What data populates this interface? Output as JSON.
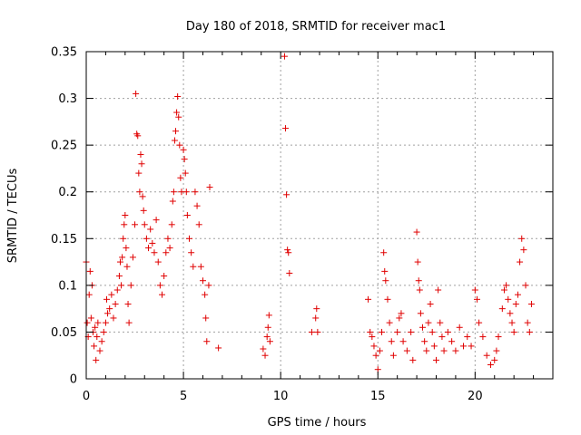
{
  "chart_data": {
    "type": "scatter",
    "title": "Day 180 of 2018, SRMTID for receiver mac1",
    "xlabel": "GPS time / hours",
    "ylabel": "SRMTID / TECUs",
    "xlim": [
      0,
      24
    ],
    "ylim": [
      0,
      0.35
    ],
    "xticks": [
      0,
      5,
      10,
      15,
      20
    ],
    "xtick_labels": [
      "0",
      "5",
      "10",
      "15",
      "20"
    ],
    "yticks": [
      0,
      0.05,
      0.1,
      0.15,
      0.2,
      0.25,
      0.3,
      0.35
    ],
    "ytick_labels": [
      "0",
      "0.05",
      "0.1",
      "0.15",
      "0.2",
      "0.25",
      "0.3",
      "0.35"
    ],
    "grid": true,
    "marker": "+",
    "color": "#e00000",
    "series": [
      {
        "name": "SRMTID",
        "points": [
          [
            0.0,
            0.125
          ],
          [
            0.05,
            0.06
          ],
          [
            0.1,
            0.045
          ],
          [
            0.15,
            0.09
          ],
          [
            0.2,
            0.115
          ],
          [
            0.25,
            0.065
          ],
          [
            0.3,
            0.1
          ],
          [
            0.35,
            0.05
          ],
          [
            0.4,
            0.035
          ],
          [
            0.45,
            0.055
          ],
          [
            0.5,
            0.02
          ],
          [
            0.55,
            0.045
          ],
          [
            0.6,
            0.06
          ],
          [
            0.7,
            0.03
          ],
          [
            0.8,
            0.04
          ],
          [
            0.9,
            0.05
          ],
          [
            1.0,
            0.06
          ],
          [
            1.05,
            0.085
          ],
          [
            1.1,
            0.07
          ],
          [
            1.2,
            0.075
          ],
          [
            1.3,
            0.09
          ],
          [
            1.4,
            0.065
          ],
          [
            1.5,
            0.08
          ],
          [
            1.6,
            0.095
          ],
          [
            1.7,
            0.11
          ],
          [
            1.75,
            0.125
          ],
          [
            1.8,
            0.1
          ],
          [
            1.85,
            0.13
          ],
          [
            1.9,
            0.15
          ],
          [
            1.95,
            0.165
          ],
          [
            2.0,
            0.175
          ],
          [
            2.05,
            0.14
          ],
          [
            2.1,
            0.12
          ],
          [
            2.15,
            0.08
          ],
          [
            2.2,
            0.06
          ],
          [
            2.3,
            0.1
          ],
          [
            2.4,
            0.13
          ],
          [
            2.5,
            0.165
          ],
          [
            2.55,
            0.305
          ],
          [
            2.6,
            0.262
          ],
          [
            2.65,
            0.26
          ],
          [
            2.7,
            0.22
          ],
          [
            2.75,
            0.2
          ],
          [
            2.8,
            0.24
          ],
          [
            2.85,
            0.23
          ],
          [
            2.9,
            0.195
          ],
          [
            2.95,
            0.18
          ],
          [
            3.0,
            0.165
          ],
          [
            3.1,
            0.15
          ],
          [
            3.2,
            0.14
          ],
          [
            3.3,
            0.16
          ],
          [
            3.4,
            0.145
          ],
          [
            3.5,
            0.135
          ],
          [
            3.6,
            0.17
          ],
          [
            3.7,
            0.125
          ],
          [
            3.8,
            0.1
          ],
          [
            3.9,
            0.09
          ],
          [
            4.0,
            0.11
          ],
          [
            4.1,
            0.135
          ],
          [
            4.2,
            0.15
          ],
          [
            4.3,
            0.14
          ],
          [
            4.4,
            0.165
          ],
          [
            4.45,
            0.19
          ],
          [
            4.5,
            0.2
          ],
          [
            4.55,
            0.255
          ],
          [
            4.6,
            0.265
          ],
          [
            4.65,
            0.285
          ],
          [
            4.7,
            0.302
          ],
          [
            4.75,
            0.28
          ],
          [
            4.8,
            0.25
          ],
          [
            4.85,
            0.215
          ],
          [
            4.9,
            0.2
          ],
          [
            5.0,
            0.245
          ],
          [
            5.05,
            0.235
          ],
          [
            5.1,
            0.22
          ],
          [
            5.15,
            0.2
          ],
          [
            5.2,
            0.175
          ],
          [
            5.3,
            0.15
          ],
          [
            5.4,
            0.135
          ],
          [
            5.5,
            0.12
          ],
          [
            5.6,
            0.2
          ],
          [
            5.7,
            0.185
          ],
          [
            5.8,
            0.165
          ],
          [
            5.9,
            0.12
          ],
          [
            6.0,
            0.105
          ],
          [
            6.1,
            0.09
          ],
          [
            6.15,
            0.065
          ],
          [
            6.2,
            0.04
          ],
          [
            6.3,
            0.1
          ],
          [
            6.35,
            0.205
          ],
          [
            6.8,
            0.033
          ],
          [
            9.1,
            0.032
          ],
          [
            9.2,
            0.025
          ],
          [
            9.3,
            0.045
          ],
          [
            9.35,
            0.055
          ],
          [
            9.4,
            0.068
          ],
          [
            9.45,
            0.04
          ],
          [
            10.2,
            0.345
          ],
          [
            10.25,
            0.268
          ],
          [
            10.3,
            0.197
          ],
          [
            10.35,
            0.138
          ],
          [
            10.4,
            0.135
          ],
          [
            10.45,
            0.113
          ],
          [
            11.6,
            0.05
          ],
          [
            11.8,
            0.065
          ],
          [
            11.85,
            0.075
          ],
          [
            11.9,
            0.05
          ],
          [
            14.5,
            0.085
          ],
          [
            14.6,
            0.05
          ],
          [
            14.7,
            0.045
          ],
          [
            14.8,
            0.035
          ],
          [
            14.9,
            0.025
          ],
          [
            15.0,
            0.01
          ],
          [
            15.1,
            0.03
          ],
          [
            15.2,
            0.05
          ],
          [
            15.3,
            0.135
          ],
          [
            15.35,
            0.115
          ],
          [
            15.4,
            0.105
          ],
          [
            15.5,
            0.085
          ],
          [
            15.6,
            0.06
          ],
          [
            15.7,
            0.04
          ],
          [
            15.8,
            0.025
          ],
          [
            16.0,
            0.05
          ],
          [
            16.1,
            0.065
          ],
          [
            16.2,
            0.07
          ],
          [
            16.3,
            0.04
          ],
          [
            16.5,
            0.03
          ],
          [
            16.7,
            0.05
          ],
          [
            16.8,
            0.02
          ],
          [
            17.0,
            0.157
          ],
          [
            17.05,
            0.125
          ],
          [
            17.1,
            0.105
          ],
          [
            17.15,
            0.095
          ],
          [
            17.2,
            0.07
          ],
          [
            17.3,
            0.055
          ],
          [
            17.4,
            0.04
          ],
          [
            17.5,
            0.03
          ],
          [
            17.6,
            0.06
          ],
          [
            17.7,
            0.08
          ],
          [
            17.8,
            0.05
          ],
          [
            17.9,
            0.035
          ],
          [
            18.0,
            0.02
          ],
          [
            18.1,
            0.095
          ],
          [
            18.2,
            0.06
          ],
          [
            18.3,
            0.045
          ],
          [
            18.4,
            0.03
          ],
          [
            18.6,
            0.05
          ],
          [
            18.8,
            0.04
          ],
          [
            19.0,
            0.03
          ],
          [
            19.2,
            0.055
          ],
          [
            19.4,
            0.035
          ],
          [
            19.6,
            0.045
          ],
          [
            19.8,
            0.035
          ],
          [
            20.0,
            0.095
          ],
          [
            20.1,
            0.085
          ],
          [
            20.2,
            0.06
          ],
          [
            20.4,
            0.045
          ],
          [
            20.6,
            0.025
          ],
          [
            20.8,
            0.015
          ],
          [
            21.0,
            0.02
          ],
          [
            21.1,
            0.03
          ],
          [
            21.2,
            0.045
          ],
          [
            21.4,
            0.075
          ],
          [
            21.5,
            0.095
          ],
          [
            21.6,
            0.1
          ],
          [
            21.7,
            0.085
          ],
          [
            21.8,
            0.07
          ],
          [
            21.9,
            0.06
          ],
          [
            22.0,
            0.05
          ],
          [
            22.1,
            0.08
          ],
          [
            22.2,
            0.09
          ],
          [
            22.3,
            0.125
          ],
          [
            22.4,
            0.15
          ],
          [
            22.5,
            0.138
          ],
          [
            22.6,
            0.1
          ],
          [
            22.7,
            0.06
          ],
          [
            22.8,
            0.05
          ],
          [
            22.9,
            0.08
          ]
        ]
      }
    ]
  }
}
